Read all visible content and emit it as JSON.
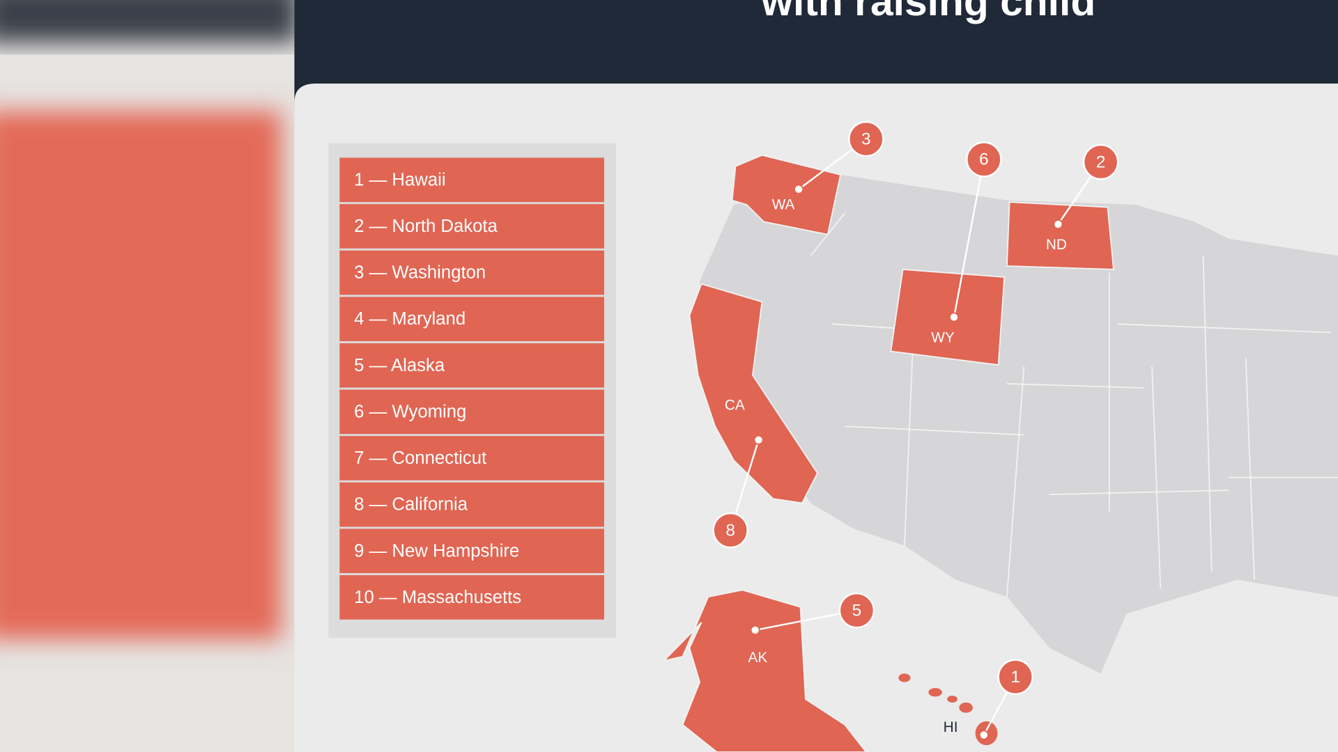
{
  "header": {
    "title": "with raising child"
  },
  "ranking": [
    "1 — Hawaii",
    "2 — North Dakota",
    "3 — Washington",
    "4 — Maryland",
    "5 — Alaska",
    "6 — Wyoming",
    "7 — Connecticut",
    "8 — California",
    "9 — New Hampshire",
    "10 — Massachusetts"
  ],
  "map": {
    "states": [
      {
        "abbr": "WA",
        "marker": 3
      },
      {
        "abbr": "ND",
        "marker": 2
      },
      {
        "abbr": "WY",
        "marker": 6
      },
      {
        "abbr": "CA",
        "marker": 8
      },
      {
        "abbr": "AK",
        "marker": 5
      },
      {
        "abbr": "HI",
        "marker": 1
      }
    ]
  }
}
